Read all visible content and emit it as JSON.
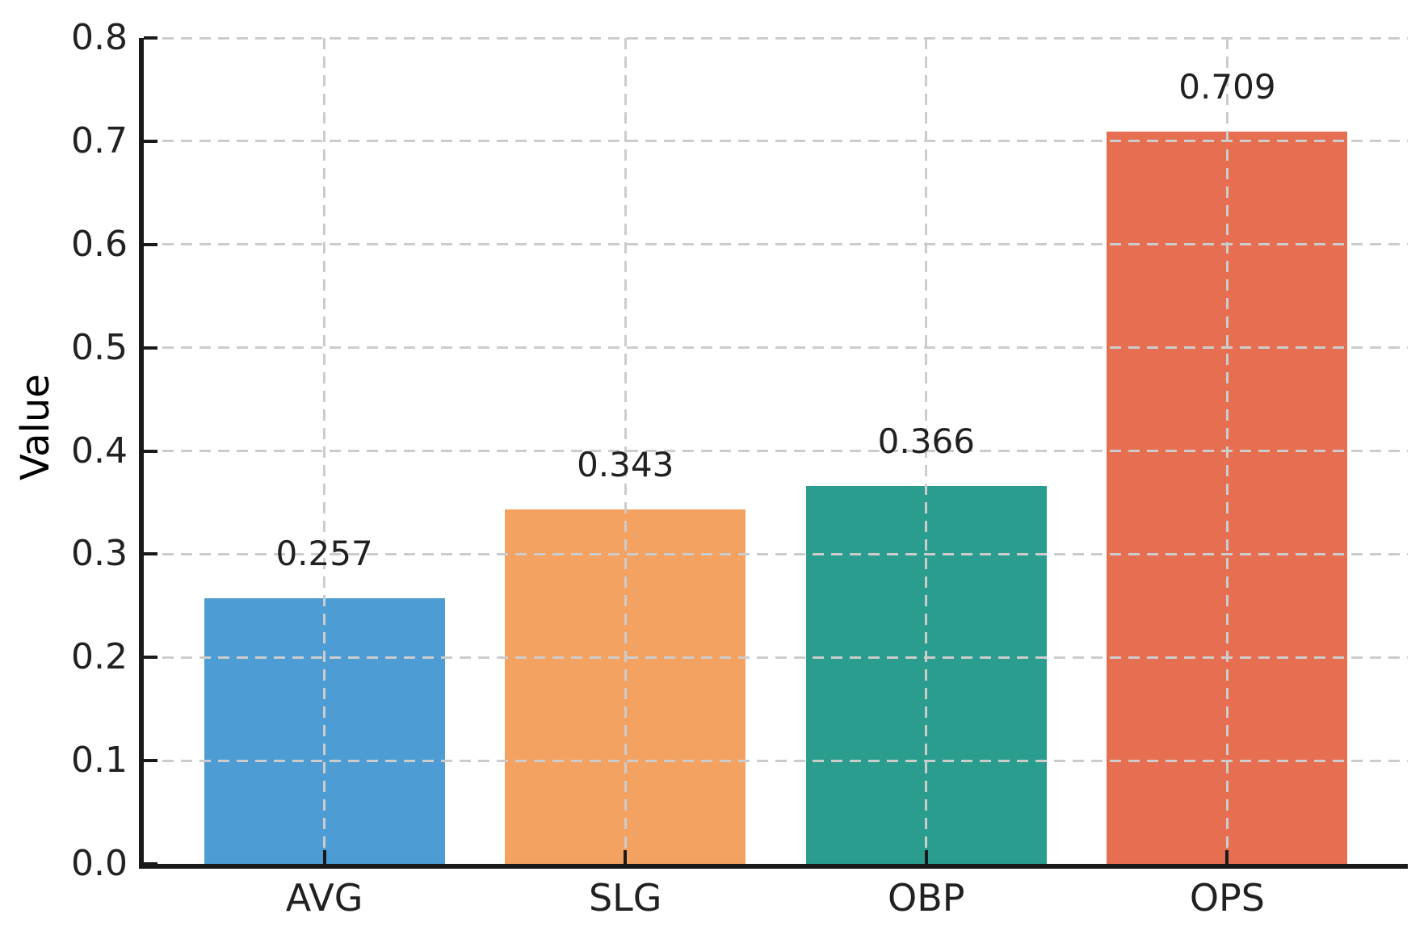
{
  "chart_data": {
    "type": "bar",
    "title": "",
    "categories": [
      "AVG",
      "SLG",
      "OBP",
      "OPS"
    ],
    "values": [
      0.257,
      0.343,
      0.366,
      0.709
    ],
    "value_labels": [
      "0.257",
      "0.343",
      "0.366",
      "0.709"
    ],
    "bar_colors": [
      "#4D9CD4",
      "#F4A261",
      "#2A9D8F",
      "#E76F51"
    ],
    "xlabel": "",
    "ylabel": "Value",
    "ylim": [
      0.0,
      0.8
    ],
    "xlim": [
      -0.6,
      3.6
    ],
    "bar_width_units": 0.8,
    "ytick_labels": [
      "0.0",
      "0.1",
      "0.2",
      "0.3",
      "0.4",
      "0.5",
      "0.6",
      "0.7",
      "0.8"
    ],
    "ytick_values": [
      0.0,
      0.1,
      0.2,
      0.3,
      0.4,
      0.5,
      0.6,
      0.7,
      0.8
    ],
    "grid": "dashed, horizontal at each y tick and vertical at each category, drawn above bars",
    "legend_position": "none",
    "colors": {
      "grid": "#cccccc",
      "axis": "#1a1a1a",
      "tick": "#1a1a1a",
      "text": "#212121",
      "background": "#ffffff"
    }
  }
}
